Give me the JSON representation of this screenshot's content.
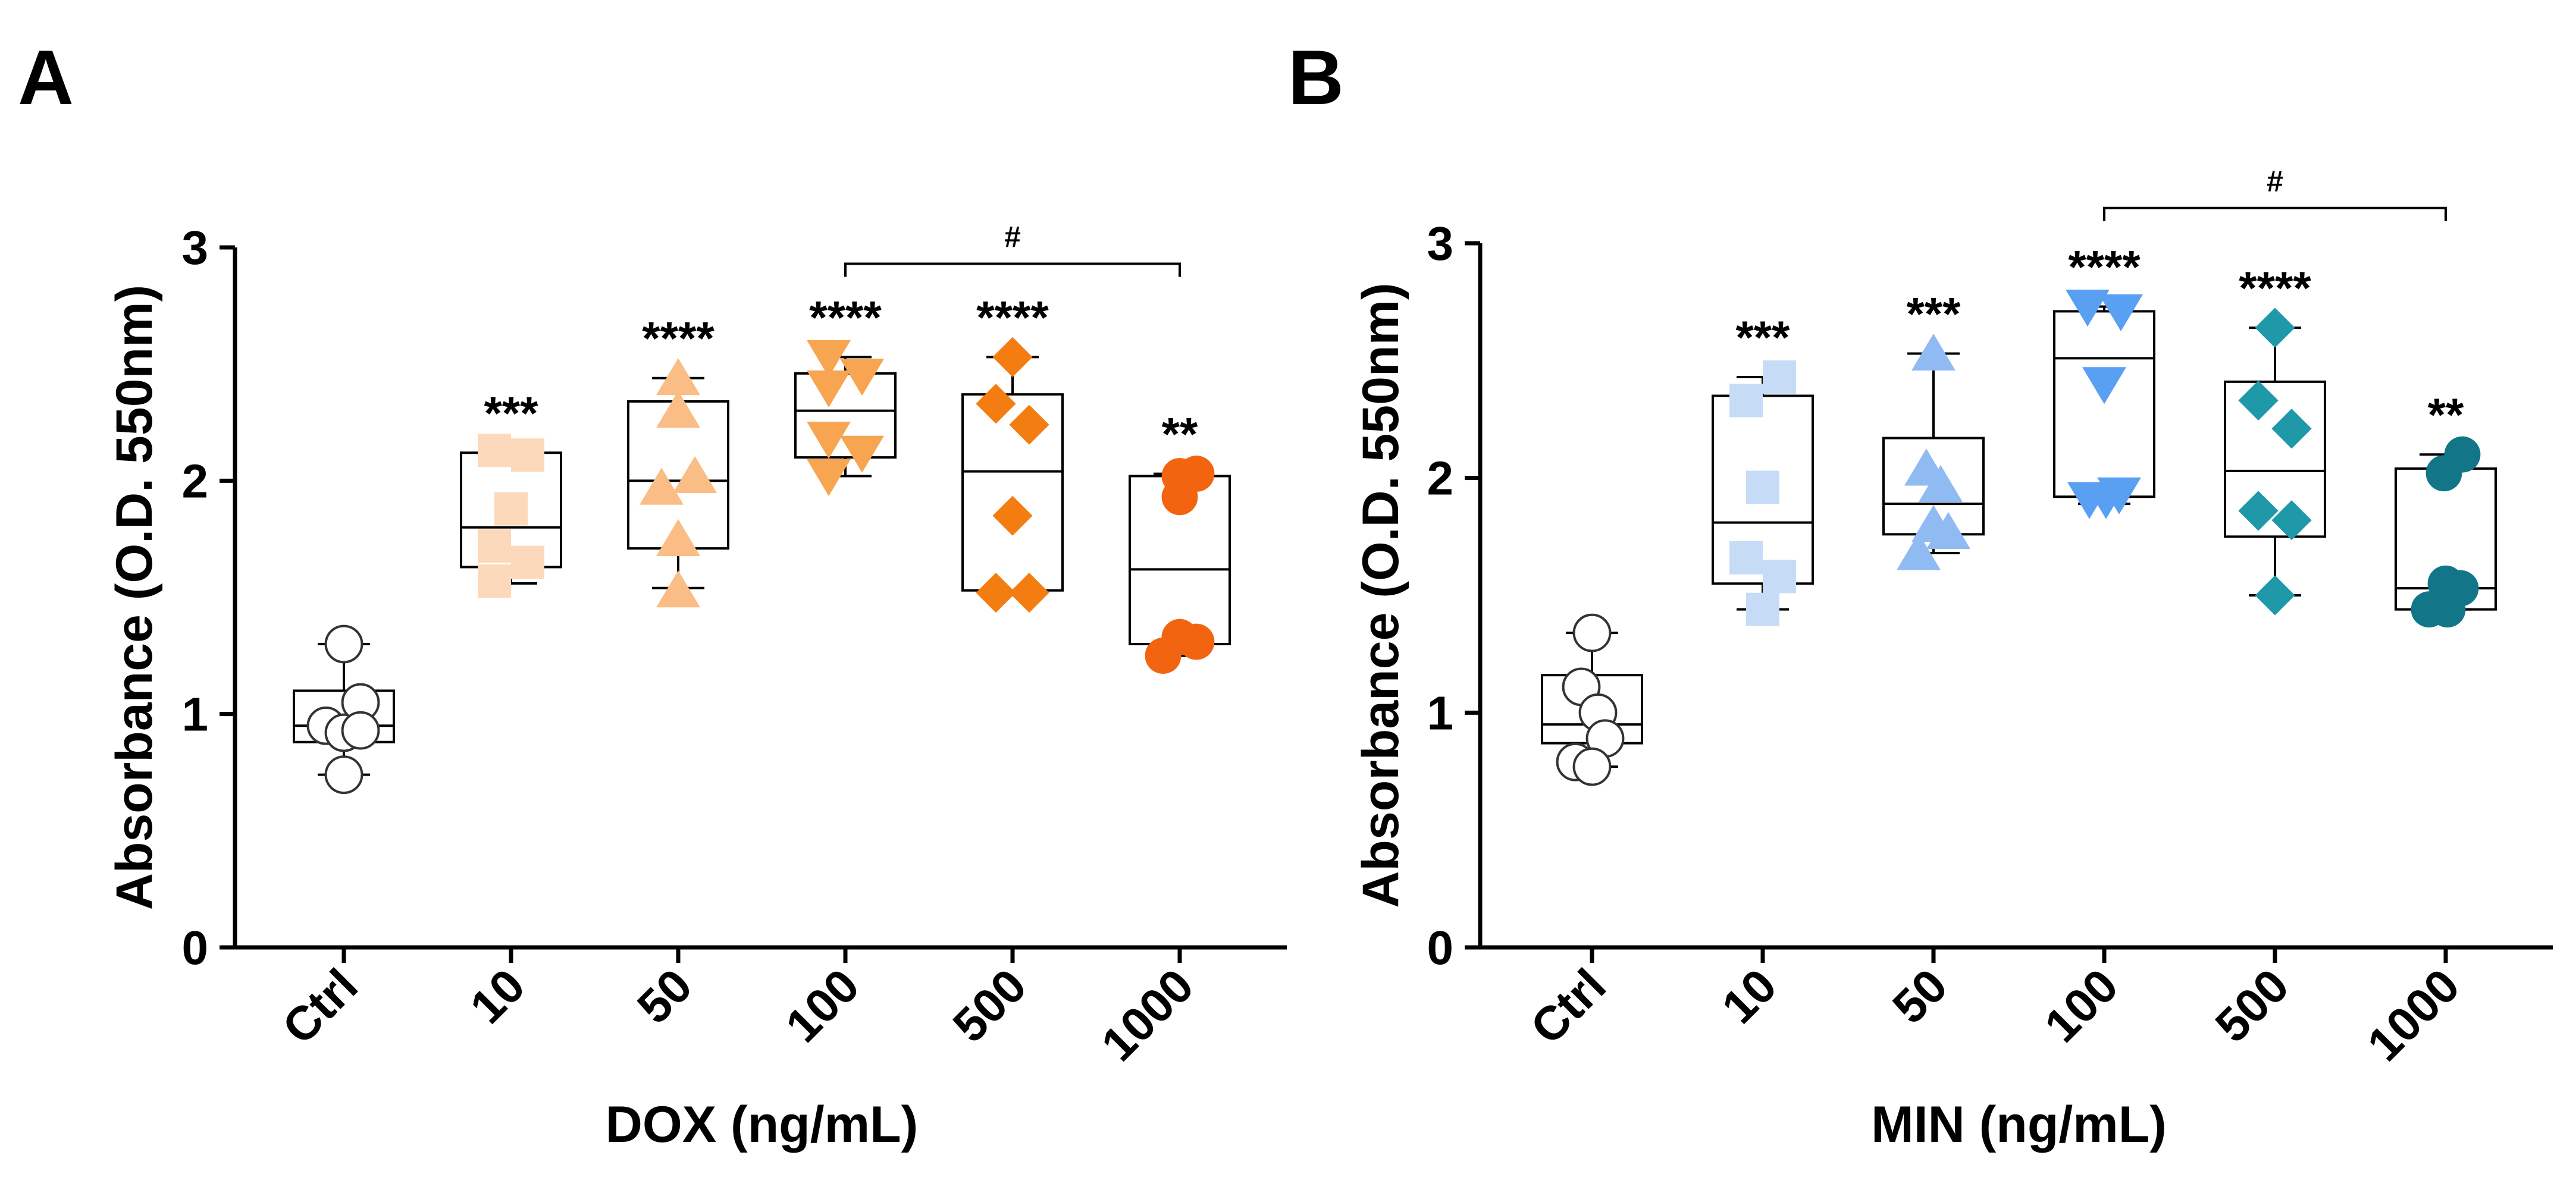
{
  "chart_data": [
    {
      "panel": "A",
      "type": "box",
      "xlabel": "DOX (ng/mL)",
      "ylabel": "Absorbance (O.D. 550nm)",
      "ylim": [
        0,
        3
      ],
      "yticks": [
        "0",
        "1",
        "2",
        "3"
      ],
      "categories": [
        "Ctrl",
        "10",
        "50",
        "100",
        "500",
        "1000"
      ],
      "groups": [
        {
          "category": "Ctrl",
          "color": "#ffffff",
          "marker": "circle",
          "whisker_min": 0.74,
          "q1": 0.88,
          "median": 0.95,
          "q3": 1.1,
          "whisker_max": 1.3,
          "sig": "",
          "points": [
            [
              0,
              1.3
            ],
            [
              -0.3,
              0.95
            ],
            [
              0,
              0.92
            ],
            [
              0.28,
              1.05
            ],
            [
              0.28,
              0.93
            ],
            [
              0,
              0.74
            ]
          ]
        },
        {
          "category": "10",
          "color": "#fcd9bb",
          "marker": "square",
          "whisker_min": 1.56,
          "q1": 1.63,
          "median": 1.8,
          "q3": 2.12,
          "whisker_max": 2.12,
          "sig": "***",
          "points": [
            [
              -0.28,
              2.13
            ],
            [
              0.28,
              2.11
            ],
            [
              0,
              1.88
            ],
            [
              -0.28,
              1.72
            ],
            [
              0.28,
              1.65
            ],
            [
              -0.28,
              1.57
            ]
          ]
        },
        {
          "category": "50",
          "color": "#f9bd85",
          "marker": "triangle",
          "whisker_min": 1.54,
          "q1": 1.71,
          "median": 2.0,
          "q3": 2.34,
          "whisker_max": 2.44,
          "sig": "****",
          "points": [
            [
              0,
              2.44
            ],
            [
              0,
              2.3
            ],
            [
              0.28,
              2.02
            ],
            [
              -0.28,
              1.97
            ],
            [
              0,
              1.75
            ],
            [
              0,
              1.53
            ]
          ]
        },
        {
          "category": "100",
          "color": "#f7a551",
          "marker": "triangle-down",
          "whisker_min": 2.02,
          "q1": 2.1,
          "median": 2.3,
          "q3": 2.46,
          "whisker_max": 2.53,
          "sig": "****",
          "points": [
            [
              -0.28,
              2.53
            ],
            [
              0.28,
              2.45
            ],
            [
              -0.28,
              2.4
            ],
            [
              -0.28,
              2.18
            ],
            [
              0.28,
              2.12
            ],
            [
              -0.28,
              2.02
            ]
          ]
        },
        {
          "category": "500",
          "color": "#f47d12",
          "marker": "diamond",
          "whisker_min": 1.51,
          "q1": 1.53,
          "median": 2.04,
          "q3": 2.37,
          "whisker_max": 2.53,
          "sig": "****",
          "points": [
            [
              0,
              2.53
            ],
            [
              -0.28,
              2.33
            ],
            [
              0.28,
              2.24
            ],
            [
              0,
              1.85
            ],
            [
              -0.28,
              1.52
            ],
            [
              0.28,
              1.52
            ]
          ]
        },
        {
          "category": "1000",
          "color": "#f26410",
          "marker": "circle",
          "whisker_min": 1.25,
          "q1": 1.3,
          "median": 1.62,
          "q3": 2.02,
          "whisker_max": 2.03,
          "sig": "**",
          "points": [
            [
              0,
              2.02
            ],
            [
              0.28,
              2.03
            ],
            [
              0,
              1.93
            ],
            [
              0,
              1.33
            ],
            [
              0.28,
              1.31
            ],
            [
              -0.28,
              1.25
            ]
          ]
        }
      ],
      "bracket": {
        "from": "100",
        "to": "1000",
        "label": "#",
        "y": 2.93
      }
    },
    {
      "panel": "B",
      "type": "box",
      "xlabel": "MIN (ng/mL)",
      "ylabel": "Absorbance (O.D. 550nm)",
      "ylim": [
        0,
        3
      ],
      "yticks": [
        "0",
        "1",
        "2",
        "3"
      ],
      "categories": [
        "Ctrl",
        "10",
        "50",
        "100",
        "500",
        "1000"
      ],
      "groups": [
        {
          "category": "Ctrl",
          "color": "#ffffff",
          "marker": "circle",
          "whisker_min": 0.77,
          "q1": 0.87,
          "median": 0.95,
          "q3": 1.16,
          "whisker_max": 1.34,
          "sig": "",
          "points": [
            [
              0,
              1.34
            ],
            [
              -0.18,
              1.11
            ],
            [
              0.1,
              1.0
            ],
            [
              0.22,
              0.89
            ],
            [
              -0.28,
              0.79
            ],
            [
              0,
              0.77
            ]
          ]
        },
        {
          "category": "10",
          "color": "#c6dcf6",
          "marker": "square",
          "whisker_min": 1.44,
          "q1": 1.55,
          "median": 1.81,
          "q3": 2.35,
          "whisker_max": 2.43,
          "sig": "***",
          "points": [
            [
              0.28,
              2.43
            ],
            [
              -0.28,
              2.33
            ],
            [
              0,
              1.96
            ],
            [
              -0.28,
              1.66
            ],
            [
              0.28,
              1.58
            ],
            [
              0,
              1.44
            ]
          ]
        },
        {
          "category": "50",
          "color": "#8fbaf2",
          "marker": "triangle",
          "whisker_min": 1.68,
          "q1": 1.76,
          "median": 1.89,
          "q3": 2.17,
          "whisker_max": 2.53,
          "sig": "***",
          "points": [
            [
              0,
              2.53
            ],
            [
              -0.12,
              2.04
            ],
            [
              0.12,
              1.97
            ],
            [
              0,
              1.8
            ],
            [
              0.25,
              1.77
            ],
            [
              -0.25,
              1.68
            ]
          ]
        },
        {
          "category": "100",
          "color": "#5aa0f2",
          "marker": "triangle-down",
          "whisker_min": 1.89,
          "q1": 1.92,
          "median": 2.51,
          "q3": 2.71,
          "whisker_max": 2.73,
          "sig": "****",
          "points": [
            [
              -0.28,
              2.73
            ],
            [
              0.28,
              2.71
            ],
            [
              0,
              2.4
            ],
            [
              -0.25,
              1.91
            ],
            [
              0.03,
              1.91
            ],
            [
              0.25,
              1.93
            ]
          ]
        },
        {
          "category": "500",
          "color": "#1f98a8",
          "marker": "diamond",
          "whisker_min": 1.5,
          "q1": 1.75,
          "median": 2.03,
          "q3": 2.41,
          "whisker_max": 2.64,
          "sig": "****",
          "points": [
            [
              0,
              2.64
            ],
            [
              -0.28,
              2.33
            ],
            [
              0.28,
              2.21
            ],
            [
              -0.28,
              1.86
            ],
            [
              0.28,
              1.82
            ],
            [
              0,
              1.5
            ]
          ]
        },
        {
          "category": "1000",
          "color": "#137588",
          "marker": "circle",
          "whisker_min": 1.44,
          "q1": 1.44,
          "median": 1.53,
          "q3": 2.04,
          "whisker_max": 2.1,
          "sig": "**",
          "points": [
            [
              0.28,
              2.1
            ],
            [
              -0.03,
              2.02
            ],
            [
              0,
              1.55
            ],
            [
              0.25,
              1.53
            ],
            [
              -0.28,
              1.44
            ],
            [
              0.03,
              1.44
            ]
          ]
        }
      ],
      "bracket": {
        "from": "100",
        "to": "1000",
        "label": "#",
        "y": 3.15
      }
    }
  ]
}
